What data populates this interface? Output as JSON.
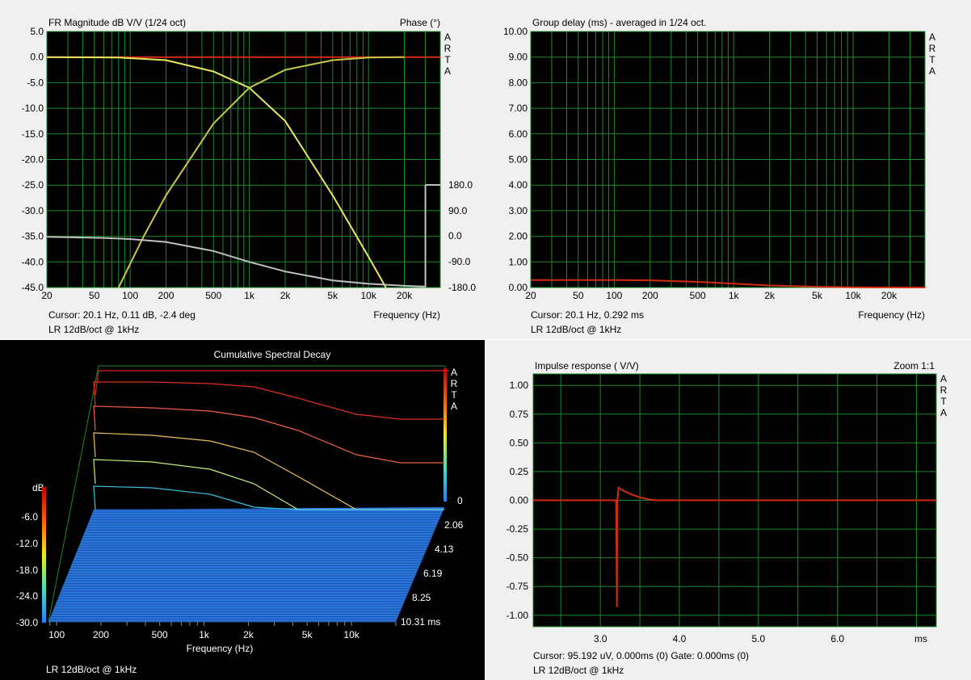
{
  "arta": [
    "A",
    "R",
    "T",
    "A"
  ],
  "subtitle": "LR 12dB/oct @ 1kHz",
  "colors": {
    "grid": "#1a8a2a",
    "trace_red": "#d42a10",
    "trace_yellow": "#e8e860",
    "trace_olive": "#c8c848",
    "trace_gray": "#c0c0c0",
    "csd_blue": "#2a78e0"
  },
  "fr": {
    "title": "FR Magnitude dB V/V (1/24 oct)",
    "phase_label": "Phase (°)",
    "xlabel": "Frequency (Hz)",
    "cursor": "Cursor: 20.1 Hz, 0.11 dB, -2.4 deg",
    "yticks": [
      "5.0",
      "0.0",
      "-5.0",
      "-10.0",
      "-15.0",
      "-20.0",
      "-25.0",
      "-30.0",
      "-35.0",
      "-40.0",
      "-45.0"
    ],
    "phase_ticks": [
      "180.0",
      "90.0",
      "0.0",
      "-90.0",
      "-180.0"
    ],
    "xticks": [
      "20",
      "50",
      "100",
      "200",
      "500",
      "1k",
      "2k",
      "5k",
      "10k",
      "20k"
    ]
  },
  "gd": {
    "title": "Group delay (ms) - averaged in 1/24 oct.",
    "xlabel": "Frequency (Hz)",
    "cursor": "Cursor: 20.1 Hz, 0.292 ms",
    "yticks": [
      "10.00",
      "9.00",
      "8.00",
      "7.00",
      "6.00",
      "5.00",
      "4.00",
      "3.00",
      "2.00",
      "1.00",
      "0.00"
    ],
    "xticks": [
      "20",
      "50",
      "100",
      "200",
      "500",
      "1k",
      "2k",
      "5k",
      "10k",
      "20k"
    ]
  },
  "csd": {
    "title": "Cumulative Spectral Decay",
    "db_label": "dB",
    "db_ticks": [
      "-6.0",
      "-12.0",
      "-18.0",
      "-24.0",
      "-30.0"
    ],
    "time_ticks": [
      "0",
      "2.06",
      "4.13",
      "6.19",
      "8.25",
      "10.31 ms"
    ],
    "xticks": [
      "100",
      "200",
      "500",
      "1k",
      "2k",
      "5k",
      "10k"
    ],
    "xlabel": "Frequency (Hz)"
  },
  "ir": {
    "title": "Impulse response ( V/V)",
    "zoom": "Zoom 1:1",
    "cursor": "Cursor: 95.192 uV, 0.000ms (0)  Gate: 0.000ms (0)",
    "yticks": [
      "1.00",
      "0.75",
      "0.50",
      "0.25",
      "0.00",
      "-0.25",
      "-0.50",
      "-0.75",
      "-1.00"
    ],
    "xticks": [
      "3.0",
      "4.0",
      "5.0",
      "6.0",
      "ms"
    ]
  },
  "chart_data": [
    {
      "type": "line",
      "title": "FR Magnitude dB V/V (1/24 oct)",
      "xlabel": "Frequency (Hz)",
      "ylabel": "dB V/V",
      "y2label": "Phase (°)",
      "xscale": "log",
      "xlim": [
        20,
        40000
      ],
      "ylim": [
        -45,
        5
      ],
      "y2lim": [
        -180,
        180
      ],
      "grid": true,
      "series": [
        {
          "name": "",
          "color": "#d42a10",
          "x": [
            20,
            100,
            1000,
            10000,
            40000
          ],
          "y": [
            0,
            0,
            0,
            0,
            0
          ]
        },
        {
          "name": "",
          "color": "#e8e860",
          "x": [
            20,
            80,
            200,
            500,
            1000,
            2000,
            5000,
            10000,
            14000
          ],
          "y": [
            0,
            -0.1,
            -0.6,
            -2.8,
            -6.0,
            -12.5,
            -27,
            -39,
            -45
          ]
        },
        {
          "name": "",
          "color": "#c8c848",
          "x": [
            80,
            130,
            200,
            500,
            1000,
            2000,
            5000,
            10000,
            20000
          ],
          "y": [
            -45,
            -35,
            -27,
            -13,
            -6,
            -2.5,
            -0.6,
            -0.1,
            0
          ]
        },
        {
          "name": "",
          "color": "#c0c0c0",
          "axis": "phase",
          "x": [
            20,
            60,
            100,
            200,
            500,
            1000,
            2000,
            5000,
            10000,
            20000,
            30000,
            30000
          ],
          "y": [
            -2.4,
            -6,
            -10,
            -20,
            -52,
            -90,
            -124,
            -155,
            -167,
            -174,
            -177,
            180
          ]
        }
      ]
    },
    {
      "type": "line",
      "title": "Group delay (ms) - averaged in 1/24 oct.",
      "xlabel": "Frequency (Hz)",
      "ylabel": "ms",
      "xscale": "log",
      "xlim": [
        20,
        40000
      ],
      "ylim": [
        0,
        10
      ],
      "grid": true,
      "series": [
        {
          "name": "",
          "color": "#d42a10",
          "x": [
            20,
            100,
            200,
            500,
            1000,
            2000,
            5000,
            10000,
            40000
          ],
          "y": [
            0.292,
            0.29,
            0.28,
            0.22,
            0.15,
            0.08,
            0.03,
            0.01,
            0.0
          ]
        }
      ]
    },
    {
      "type": "area",
      "title": "Cumulative Spectral Decay",
      "xlabel": "Frequency (Hz)",
      "ylabel": "dB",
      "xscale": "log",
      "xlim": [
        80,
        20000
      ],
      "ylim": [
        -30,
        0
      ],
      "time_ms": [
        0,
        10.31
      ],
      "grid": false,
      "slices": [
        {
          "x": [
            80,
            200,
            500,
            1000,
            2000,
            5000,
            10000,
            20000
          ],
          "y": [
            0,
            0,
            0,
            0,
            0,
            0,
            0,
            0
          ]
        },
        {
          "x": [
            80,
            200,
            500,
            1000,
            2000,
            5000,
            10000,
            20000
          ],
          "y": [
            -3,
            -3,
            -3.3,
            -4,
            -5.5,
            -8,
            -9,
            -9
          ]
        },
        {
          "x": [
            80,
            200,
            500,
            1000,
            2000,
            3000,
            5000,
            10000,
            20000
          ],
          "y": [
            -9,
            -9.5,
            -10.5,
            -12,
            -15,
            -19,
            -22,
            -22,
            -22
          ]
        }
      ]
    },
    {
      "type": "line",
      "title": "Impulse response ( V/V)",
      "xlabel": "ms",
      "ylabel": "V/V",
      "xlim": [
        2.15,
        7.25
      ],
      "ylim": [
        -1.1,
        1.1
      ],
      "grid": true,
      "series": [
        {
          "name": "",
          "color": "#d42a10",
          "x": [
            2.15,
            3.2,
            3.21,
            3.215,
            3.23,
            3.3,
            3.4,
            3.5,
            3.6,
            3.7,
            7.25
          ],
          "y": [
            0,
            0,
            -0.93,
            0,
            0.11,
            0.08,
            0.05,
            0.025,
            0.01,
            0,
            0
          ]
        }
      ]
    }
  ]
}
